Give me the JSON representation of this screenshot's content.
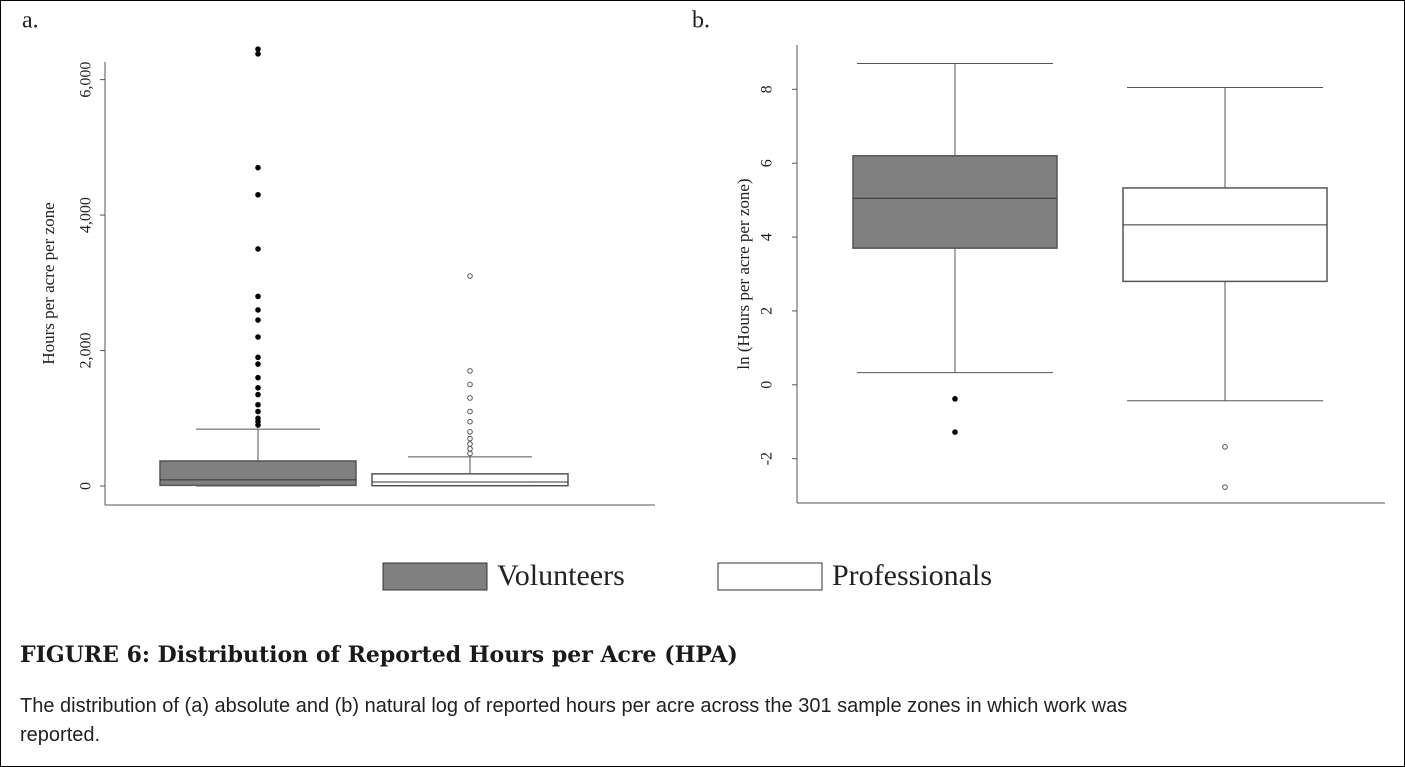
{
  "figure_title": "FIGURE 6: Distribution of Reported Hours per Acre (HPA)",
  "caption": "The distribution of (a) absolute and (b) natural log of reported hours per acre across the 301 sample zones in which work was reported.",
  "chart_data": [
    {
      "type": "box",
      "panel_label": "a.",
      "ylabel": "Hours per acre per zone",
      "ylim": [
        -280,
        6260
      ],
      "yticks": [
        0,
        {
          "value": 2000,
          "label": "2,000"
        },
        {
          "value": 4000,
          "label": "4,000"
        },
        {
          "value": 6000,
          "label": "6,000"
        }
      ],
      "series": [
        {
          "name": "Volunteers",
          "color": "#808080",
          "outlier_color": "#000000",
          "whislo": 0,
          "q1": 10,
          "med": 90,
          "q3": 370,
          "whishi": 840,
          "fliers": [
            6450,
            6380,
            4700,
            4300,
            3500,
            2800,
            2600,
            2450,
            2200,
            1900,
            1800,
            1600,
            1450,
            1350,
            1200,
            1100,
            1000,
            950,
            900
          ]
        },
        {
          "name": "Professionals",
          "color": "#ffffff",
          "outlier_color": "#555555",
          "whislo": 0,
          "q1": 5,
          "med": 60,
          "q3": 180,
          "whishi": 430,
          "fliers": [
            3100,
            1700,
            1500,
            1300,
            1100,
            950,
            800,
            700,
            620,
            550,
            480
          ]
        }
      ]
    },
    {
      "type": "box",
      "panel_label": "b.",
      "ylabel": "ln (Hours per acre per zone)",
      "ylim": [
        -3.2,
        9.2
      ],
      "yticks": [
        -2,
        0,
        2,
        4,
        6,
        8
      ],
      "series": [
        {
          "color": "#808080",
          "outlier_color": "#000000",
          "whislo": 0.33,
          "q1": 3.7,
          "med": 5.05,
          "q3": 6.2,
          "whishi": 8.7,
          "fliers": [
            -0.38,
            -1.28
          ]
        },
        {
          "color": "#ffffff",
          "outlier_color": "#555555",
          "whislo": -0.43,
          "q1": 2.8,
          "med": 4.33,
          "q3": 5.33,
          "whishi": 8.05,
          "fliers": [
            -1.68,
            -2.77
          ]
        }
      ]
    }
  ]
}
